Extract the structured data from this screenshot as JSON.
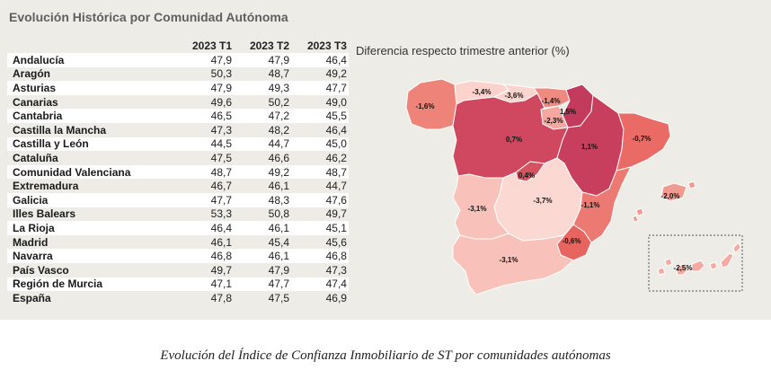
{
  "title": "Evolución Histórica por Comunidad Autónoma",
  "map_title": "Diferencia respecto trimestre anterior (%)",
  "caption": "Evolución del Índice de Confianza Inmobiliario de ST por comunidades autónomas",
  "chart_data": [
    {
      "type": "table",
      "columns": [
        "2023 T1",
        "2023 T2",
        "2023 T3"
      ],
      "rows": [
        {
          "name": "Andalucía",
          "values": [
            "47,9",
            "47,9",
            "46,4"
          ]
        },
        {
          "name": "Aragón",
          "values": [
            "50,3",
            "48,7",
            "49,2"
          ]
        },
        {
          "name": "Asturias",
          "values": [
            "47,9",
            "49,3",
            "47,7"
          ]
        },
        {
          "name": "Canarias",
          "values": [
            "49,6",
            "50,2",
            "49,0"
          ]
        },
        {
          "name": "Cantabria",
          "values": [
            "46,5",
            "47,2",
            "45,5"
          ]
        },
        {
          "name": "Castilla la Mancha",
          "values": [
            "47,3",
            "48,2",
            "46,4"
          ]
        },
        {
          "name": "Castilla y León",
          "values": [
            "44,5",
            "44,7",
            "45,0"
          ]
        },
        {
          "name": "Cataluña",
          "values": [
            "47,5",
            "46,6",
            "46,2"
          ]
        },
        {
          "name": "Comunidad Valenciana",
          "values": [
            "48,7",
            "49,2",
            "48,7"
          ]
        },
        {
          "name": "Extremadura",
          "values": [
            "46,7",
            "46,1",
            "44,7"
          ]
        },
        {
          "name": "Galicia",
          "values": [
            "47,7",
            "48,3",
            "47,6"
          ]
        },
        {
          "name": "Illes Balears",
          "values": [
            "53,3",
            "50,8",
            "49,7"
          ]
        },
        {
          "name": "La Rioja",
          "values": [
            "46,4",
            "46,1",
            "45,1"
          ]
        },
        {
          "name": "Madrid",
          "values": [
            "46,1",
            "45,4",
            "45,6"
          ]
        },
        {
          "name": "Navarra",
          "values": [
            "46,8",
            "46,1",
            "46,8"
          ]
        },
        {
          "name": "País Vasco",
          "values": [
            "49,7",
            "47,9",
            "47,3"
          ]
        },
        {
          "name": "Región de Murcia",
          "values": [
            "47,1",
            "47,7",
            "47,4"
          ]
        },
        {
          "name": "España",
          "values": [
            "47,8",
            "47,5",
            "46,9"
          ]
        }
      ]
    },
    {
      "type": "choropleth",
      "regions": [
        {
          "id": "galicia",
          "label": "-1,6%",
          "value": -1.6,
          "color": "#ee8479"
        },
        {
          "id": "asturias",
          "label": "-3,4%",
          "value": -3.4,
          "color": "#fbd3cc"
        },
        {
          "id": "cantabria",
          "label": "-3,6%",
          "value": -3.6,
          "color": "#fad5cf"
        },
        {
          "id": "pais-vasco",
          "label": "-1,4%",
          "value": -1.4,
          "color": "#ef8a80"
        },
        {
          "id": "navarra",
          "label": "1,5%",
          "value": 1.5,
          "color": "#c23a5c"
        },
        {
          "id": "la-rioja",
          "label": "-2,3%",
          "value": -2.3,
          "color": "#f4a89f"
        },
        {
          "id": "castilla-y-leon",
          "label": "0,7%",
          "value": 0.7,
          "color": "#cf4860"
        },
        {
          "id": "aragon",
          "label": "1,1%",
          "value": 1.1,
          "color": "#c83f5d"
        },
        {
          "id": "cataluna",
          "label": "-0,7%",
          "value": -0.7,
          "color": "#ea6b66"
        },
        {
          "id": "madrid",
          "label": "0,4%",
          "value": 0.4,
          "color": "#d5525f"
        },
        {
          "id": "castilla-la-mancha",
          "label": "-3,7%",
          "value": -3.7,
          "color": "#fcd8d2"
        },
        {
          "id": "extremadura",
          "label": "-3,1%",
          "value": -3.1,
          "color": "#f8c1b9"
        },
        {
          "id": "comunidad-valenciana",
          "label": "-1,1%",
          "value": -1.1,
          "color": "#ec7a72"
        },
        {
          "id": "region-de-murcia",
          "label": "-0,6%",
          "value": -0.6,
          "color": "#e8655f"
        },
        {
          "id": "andalucia",
          "label": "-3,1%",
          "value": -3.1,
          "color": "#f8c1b9"
        },
        {
          "id": "illes-balears",
          "label": "-2,0%",
          "value": -2.0,
          "color": "#f19a91"
        },
        {
          "id": "canarias",
          "label": "-2,5%",
          "value": -2.5,
          "color": "#f4aaa1"
        }
      ]
    }
  ]
}
